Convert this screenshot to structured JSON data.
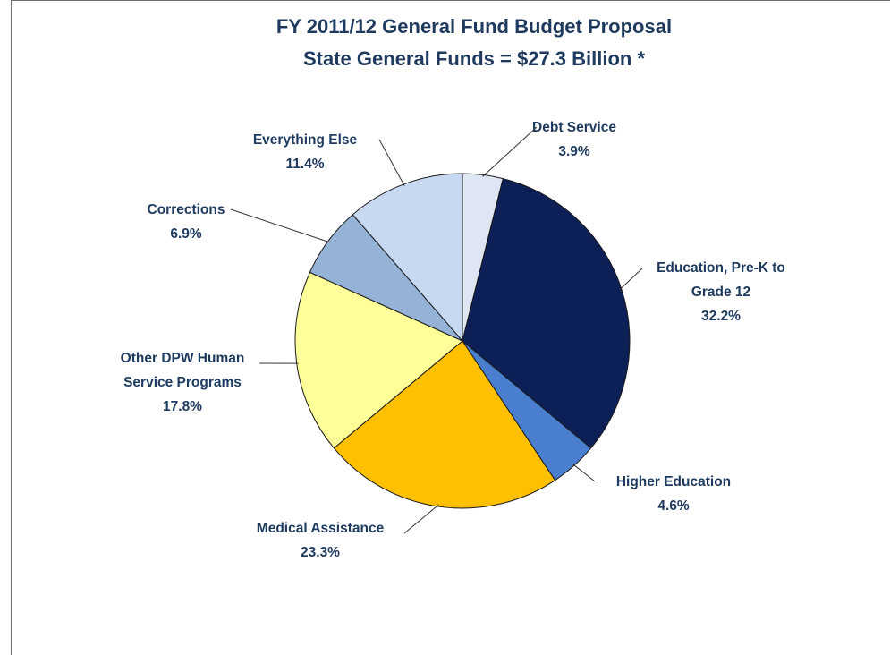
{
  "chart_data": {
    "type": "pie",
    "title": "FY 2011/12 General Fund Budget Proposal",
    "subtitle": "State General Funds = $27.3 Billion *",
    "slices": [
      {
        "label": "Debt Service",
        "pct_text": "3.9%",
        "value": 3.9,
        "color": "#dde6f2"
      },
      {
        "label": "Education, Pre-K to Grade 12",
        "pct_text": "32.2%",
        "value": 32.2,
        "color": "#0c1f57"
      },
      {
        "label": "Higher Education",
        "pct_text": "4.6%",
        "value": 4.6,
        "color": "#4a7fd0"
      },
      {
        "label": "Medical Assistance",
        "pct_text": "23.3%",
        "value": 23.3,
        "color": "#ffc000"
      },
      {
        "label": "Other DPW Human Service Programs",
        "pct_text": "17.8%",
        "value": 17.8,
        "color": "#ffff99"
      },
      {
        "label": "Corrections",
        "pct_text": "6.9%",
        "value": 6.9,
        "color": "#94b3d7"
      },
      {
        "label": "Everything Else",
        "pct_text": "11.4%",
        "value": 11.4,
        "color": "#c6d9f1"
      }
    ],
    "label_lines": {
      "education": [
        "Education, Pre-K to",
        "Grade 12"
      ],
      "other_dpw": [
        "Other DPW Human",
        "Service Programs"
      ]
    }
  }
}
